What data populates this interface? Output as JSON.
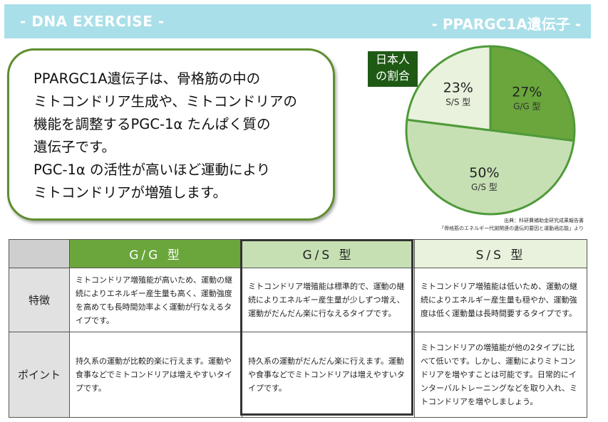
{
  "header": {
    "left": "- DNA EXERCISE -",
    "right": "- PPARGC1A遺伝子 -"
  },
  "intro": {
    "lines": [
      "PPARGC1A遺伝子は、骨格筋の中の",
      "ミトコンドリア生成や、ミトコンドリアの",
      "機能を調整するPGC-1α たんぱく質の",
      "遺伝子です。",
      "PGC-1α の活性が高いほど運動により",
      "ミトコンドリアが増殖します。"
    ]
  },
  "badge": {
    "line1": "日本人",
    "line2": "の割合"
  },
  "chart_data": {
    "type": "pie",
    "title": "",
    "slices": [
      {
        "label": "G/G 型",
        "value": 27,
        "display": "27%",
        "color": "#6aa63c"
      },
      {
        "label": "G/S 型",
        "value": 50,
        "display": "50%",
        "color": "#c6e0b4"
      },
      {
        "label": "S/S 型",
        "value": 23,
        "display": "23%",
        "color": "#e8f2dc"
      }
    ],
    "border_color": "#4f9a3a"
  },
  "source": {
    "line1": "出典：科研費補助金研究成果報告書",
    "line2": "「骨格筋のエネルギー代謝関連の遺伝的要因と運動適応能」より"
  },
  "table": {
    "columns": [
      "G/G 型",
      "G/S 型",
      "S/S 型"
    ],
    "rows": [
      {
        "label": "特徴",
        "cells": [
          "ミトコンドリア増殖能が高いため、運動の継続によりエネルギー産生量も高く、運動強度を高めても長時間効率よく運動が行なえるタイプです。",
          "ミトコンドリア増殖能は標準的で、運動の継続によりエネルギー産生量が少しずつ増え、運動がだんだん楽に行なえるタイプです。",
          "ミトコンドリア増殖能は低いため、運動の継続によりエネルギー産生量も穏やか、運動強度は低く運動量は長時間要するタイプです。"
        ]
      },
      {
        "label": "ポイント",
        "cells": [
          "持久系の運動が比較的楽に行えます。運動や食事などでミトコンドリアは増えやすいタイプです。",
          "持久系の運動がだんだん楽に行えます。運動や食事などでミトコンドリアは増えやすいタイプです。",
          "ミトコンドリアの増殖能が他の2タイプに比べて低いです。しかし、運動によりミトコンドリアを増やすことは可能です。日常的にインターバルトレーニングなどを取り入れ、ミトコンドリアを増やしましょう。"
        ]
      }
    ]
  }
}
